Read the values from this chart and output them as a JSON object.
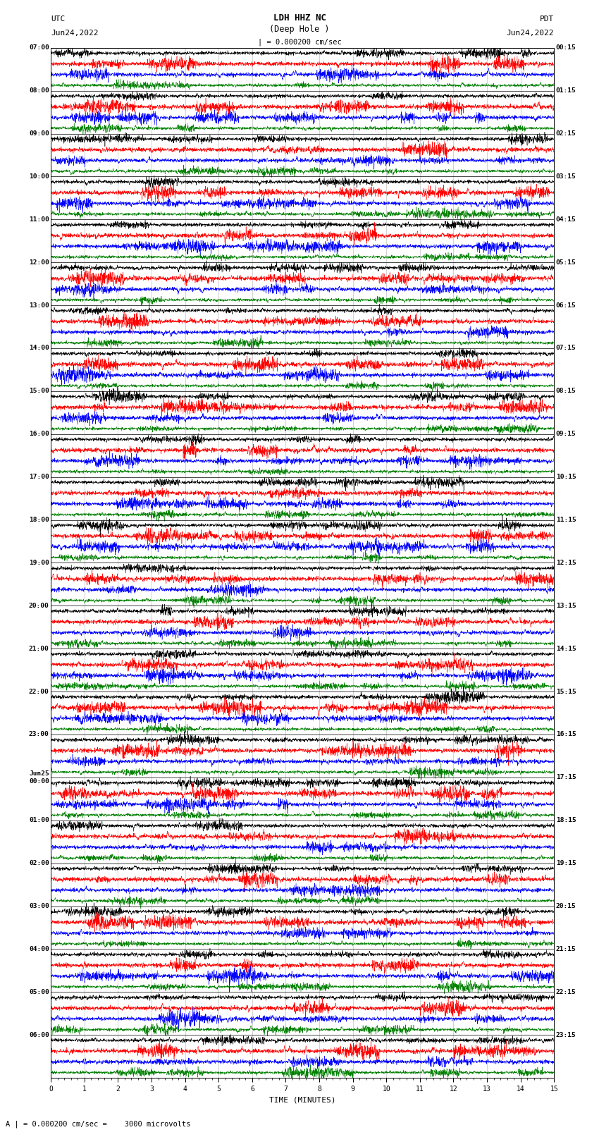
{
  "title_line1": "LDH HHZ NC",
  "title_line2": "(Deep Hole )",
  "title_scale": "| = 0.000200 cm/sec",
  "left_header1": "UTC",
  "left_header2": "Jun24,2022",
  "right_header1": "PDT",
  "right_header2": "Jun24,2022",
  "xlabel": "TIME (MINUTES)",
  "footer": "A | = 0.000200 cm/sec =    3000 microvolts",
  "utc_labels": [
    "07:00",
    "08:00",
    "09:00",
    "10:00",
    "11:00",
    "12:00",
    "13:00",
    "14:00",
    "15:00",
    "16:00",
    "17:00",
    "18:00",
    "19:00",
    "20:00",
    "21:00",
    "22:00",
    "23:00",
    "Jun25\n00:00",
    "01:00",
    "02:00",
    "03:00",
    "04:00",
    "05:00",
    "06:00"
  ],
  "pdt_labels": [
    "00:15",
    "01:15",
    "02:15",
    "03:15",
    "04:15",
    "05:15",
    "06:15",
    "07:15",
    "08:15",
    "09:15",
    "10:15",
    "11:15",
    "12:15",
    "13:15",
    "14:15",
    "15:15",
    "16:15",
    "17:15",
    "18:15",
    "19:15",
    "20:15",
    "21:15",
    "22:15",
    "23:15"
  ],
  "n_hour_groups": 24,
  "n_channels": 4,
  "colors": [
    "black",
    "red",
    "blue",
    "green"
  ],
  "x_ticks": [
    0,
    1,
    2,
    3,
    4,
    5,
    6,
    7,
    8,
    9,
    10,
    11,
    12,
    13,
    14,
    15
  ],
  "x_lim": [
    0,
    15
  ],
  "background_color": "white",
  "noise_amp": [
    0.18,
    0.22,
    0.2,
    0.15
  ],
  "spike_amp": [
    0.6,
    0.9,
    0.75,
    0.55
  ]
}
